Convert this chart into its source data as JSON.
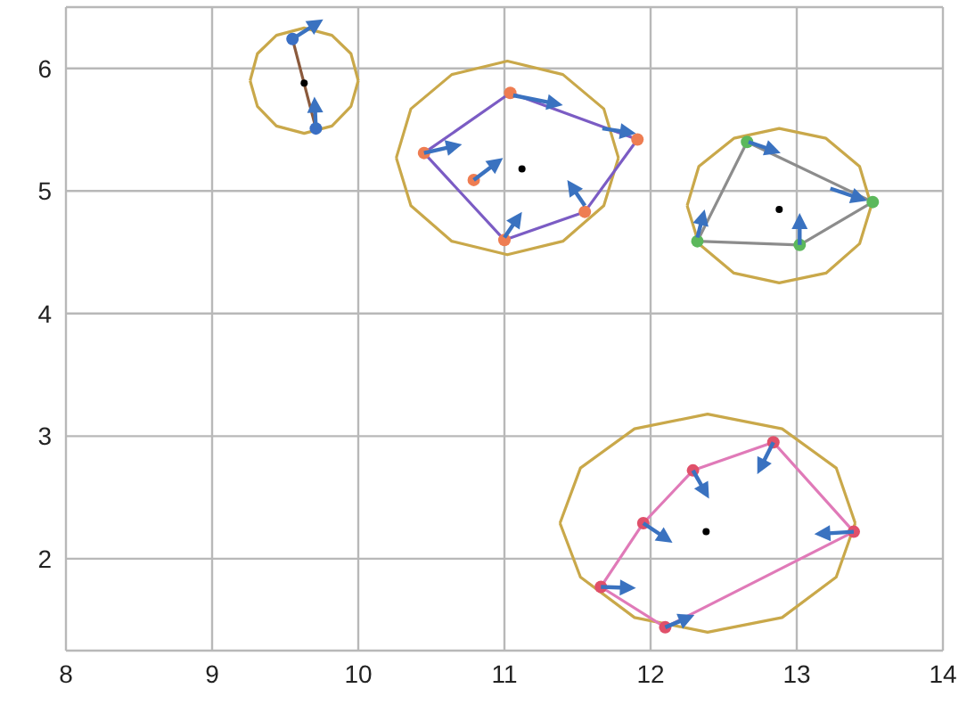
{
  "chart_data": {
    "type": "line",
    "xlim": [
      8,
      14
    ],
    "ylim": [
      1.25,
      6.5
    ],
    "xticks": [
      8,
      9,
      10,
      11,
      12,
      13,
      14
    ],
    "yticks": [
      2,
      3,
      4,
      5,
      6
    ],
    "grid": true,
    "series": [
      {
        "type": "scatter",
        "color": "#3a6fc4",
        "marker": "circle",
        "x": [
          9.55,
          9.71
        ],
        "values": [
          6.24,
          5.51
        ]
      },
      {
        "type": "scatter",
        "color": "#ee7d52",
        "marker": "circle",
        "x": [
          10.45,
          11.04,
          11.91,
          11.55,
          11.0,
          10.79
        ],
        "values": [
          5.31,
          5.8,
          5.42,
          4.83,
          4.6,
          5.09
        ]
      },
      {
        "type": "scatter",
        "color": "#5cb85c",
        "marker": "circle",
        "x": [
          12.32,
          12.66,
          13.52,
          13.02
        ],
        "values": [
          4.59,
          5.4,
          4.91,
          4.56
        ]
      },
      {
        "type": "scatter",
        "color": "#e0506a",
        "marker": "circle",
        "x": [
          11.66,
          11.95,
          12.29,
          12.84,
          13.39,
          12.1
        ],
        "values": [
          1.77,
          2.29,
          2.72,
          2.95,
          2.22,
          1.44
        ]
      },
      {
        "color": "#c9a84a",
        "x": [
          9.26,
          9.31,
          9.44,
          9.63,
          9.82,
          9.95,
          10.0
        ],
        "values": [
          5.9,
          6.12,
          6.27,
          6.33,
          6.27,
          6.12,
          5.9
        ]
      },
      {
        "color": "#c9a84a",
        "x": [
          9.26,
          9.31,
          9.44,
          9.63,
          9.82,
          9.95,
          10.0
        ],
        "values": [
          5.9,
          5.69,
          5.53,
          5.47,
          5.53,
          5.69,
          5.9
        ]
      },
      {
        "color": "#c9a84a",
        "x": [
          10.26,
          10.36,
          10.64,
          11.02,
          11.4,
          11.68,
          11.78
        ],
        "values": [
          5.27,
          5.67,
          5.95,
          6.06,
          5.95,
          5.67,
          5.27
        ]
      },
      {
        "color": "#c9a84a",
        "x": [
          10.26,
          10.36,
          10.64,
          11.02,
          11.4,
          11.68,
          11.78
        ],
        "values": [
          5.27,
          4.88,
          4.59,
          4.48,
          4.59,
          4.88,
          5.27
        ]
      },
      {
        "color": "#c9a84a",
        "x": [
          12.25,
          12.33,
          12.57,
          12.88,
          13.2,
          13.43,
          13.51
        ],
        "values": [
          4.88,
          5.2,
          5.43,
          5.51,
          5.43,
          5.2,
          4.88
        ]
      },
      {
        "color": "#c9a84a",
        "x": [
          12.25,
          12.33,
          12.57,
          12.88,
          13.2,
          13.43,
          13.51
        ],
        "values": [
          4.88,
          4.57,
          4.33,
          4.25,
          4.33,
          4.57,
          4.88
        ]
      },
      {
        "color": "#c9a84a",
        "x": [
          11.38,
          11.52,
          11.89,
          12.39,
          12.9,
          13.27,
          13.4
        ],
        "values": [
          2.29,
          2.74,
          3.06,
          3.18,
          3.06,
          2.74,
          2.29
        ]
      },
      {
        "color": "#c9a84a",
        "x": [
          11.38,
          11.52,
          11.89,
          12.39,
          12.9,
          13.27,
          13.4
        ],
        "values": [
          2.29,
          1.85,
          1.52,
          1.4,
          1.52,
          1.85,
          2.29
        ]
      },
      {
        "color": "#8b5a3c",
        "x": [
          9.55,
          9.71
        ],
        "values": [
          6.24,
          5.51
        ]
      },
      {
        "color": "#7b5cc4",
        "x": [
          10.45,
          11.04,
          11.91
        ],
        "values": [
          5.31,
          5.8,
          5.42
        ]
      },
      {
        "color": "#7b5cc4",
        "x": [
          10.45,
          11.0,
          11.55,
          11.91
        ],
        "values": [
          5.31,
          4.6,
          4.83,
          5.42
        ]
      },
      {
        "color": "#8c8c8c",
        "x": [
          12.32,
          12.66,
          13.52
        ],
        "values": [
          4.59,
          5.4,
          4.91
        ]
      },
      {
        "color": "#8c8c8c",
        "x": [
          12.32,
          13.02,
          13.52
        ],
        "values": [
          4.59,
          4.56,
          4.91
        ]
      },
      {
        "color": "#e07ab8",
        "x": [
          11.66,
          11.95,
          12.29,
          12.84,
          13.39
        ],
        "values": [
          1.77,
          2.29,
          2.72,
          2.95,
          2.22
        ]
      },
      {
        "color": "#e07ab8",
        "x": [
          11.66,
          12.1,
          13.39
        ],
        "values": [
          1.77,
          1.44,
          2.22
        ]
      },
      {
        "type": "scatter",
        "color": "#000000",
        "marker": "circle",
        "x": [
          9.63,
          11.12,
          12.88,
          12.38
        ],
        "values": [
          5.88,
          5.18,
          4.85,
          2.22
        ]
      }
    ]
  }
}
